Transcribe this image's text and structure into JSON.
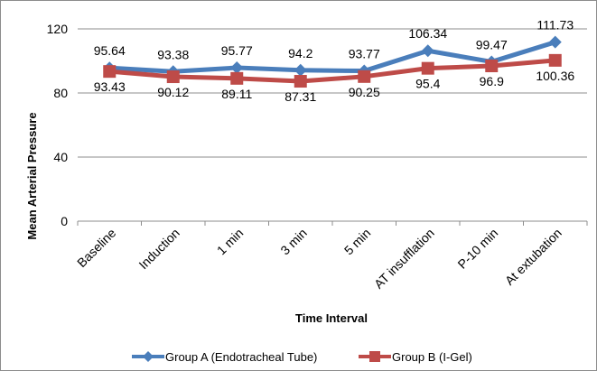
{
  "chart_data": {
    "type": "line",
    "categories": [
      "Baseline",
      "Induction",
      "1 min",
      "3 min",
      "5 min",
      "AT insufflation",
      "P-10 min",
      "At extubation"
    ],
    "series": [
      {
        "name": "Group A (Endotracheal Tube)",
        "color": "#4a7ebb",
        "marker": "diamond",
        "values": [
          95.64,
          93.38,
          95.77,
          94.2,
          93.77,
          106.34,
          99.47,
          111.73
        ],
        "labels": [
          "95.64",
          "93.38",
          "95.77",
          "94.2",
          "93.77",
          "106.34",
          "99.47",
          "111.73"
        ]
      },
      {
        "name": "Group B (I-Gel)",
        "color": "#be4b48",
        "marker": "square",
        "values": [
          93.43,
          90.12,
          89.11,
          87.31,
          90.25,
          95.4,
          96.9,
          100.36
        ],
        "labels": [
          "93.43",
          "90.12",
          "89.11",
          "87.31",
          "90.25",
          "95.4",
          "96.9",
          "100.36"
        ]
      }
    ],
    "title": "",
    "xlabel": "Time Interval",
    "ylabel": "Mean Arterial Pressure",
    "ylim": [
      0,
      120
    ],
    "yticks": [
      "0",
      "40",
      "80",
      "120"
    ],
    "grid": true,
    "legend": "bottom"
  }
}
